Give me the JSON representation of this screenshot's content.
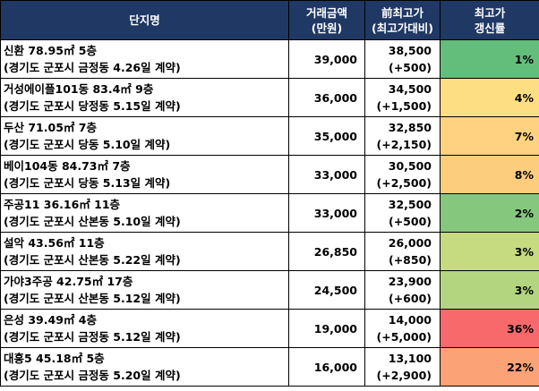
{
  "header": {
    "name": "단지명",
    "amount": [
      "거래금액",
      "(만원)"
    ],
    "prev": [
      "前최고가",
      "(최고가대비)"
    ],
    "rate": [
      "최고가",
      "갱신률"
    ]
  },
  "rows": [
    {
      "name": "신환 78.95㎡ 5층",
      "detail": "(경기도 군포시 금정동 4.26일 계약)",
      "amount": "39,000",
      "prev_high": "38,500",
      "diff": "(+500)",
      "rate": "1%",
      "color": "#63be7b"
    },
    {
      "name": "거성에이플101동 83.4㎡ 9층",
      "detail": "(경기도 군포시 당정동 5.15일 계약)",
      "amount": "36,000",
      "prev_high": "34,500",
      "diff": "(+1,500)",
      "rate": "4%",
      "color": "#fede83"
    },
    {
      "name": "두산 71.05㎡ 7층",
      "detail": "(경기도 군포시 당동 5.10일 계약)",
      "amount": "35,000",
      "prev_high": "32,850",
      "diff": "(+2,150)",
      "rate": "7%",
      "color": "#fed280"
    },
    {
      "name": "베이104동 84.73㎡ 7층",
      "detail": "(경기도 군포시 당동 5.13일 계약)",
      "amount": "33,000",
      "prev_high": "30,500",
      "diff": "(+2,500)",
      "rate": "8%",
      "color": "#fdcd7e"
    },
    {
      "name": "주공11 36.16㎡ 11층",
      "detail": "(경기도 군포시 산본동 5.10일 계약)",
      "amount": "33,000",
      "prev_high": "32,500",
      "diff": "(+500)",
      "rate": "2%",
      "color": "#85c87d"
    },
    {
      "name": "설악 43.56㎡ 11층",
      "detail": "(경기도 군포시 산본동 5.22일 계약)",
      "amount": "26,850",
      "prev_high": "26,000",
      "diff": "(+850)",
      "rate": "3%",
      "color": "#c6da80"
    },
    {
      "name": "가야3주공 42.75㎡ 17층",
      "detail": "(경기도 군포시 산본동 5.12일 계약)",
      "amount": "24,500",
      "prev_high": "23,900",
      "diff": "(+600)",
      "rate": "3%",
      "color": "#b3d57f"
    },
    {
      "name": "은성 39.49㎡ 4층",
      "detail": "(경기도 군포시 금정동 5.12일 계약)",
      "amount": "19,000",
      "prev_high": "14,000",
      "diff": "(+5,000)",
      "rate": "36%",
      "color": "#f8696b"
    },
    {
      "name": "대흥5 45.18㎡ 5층",
      "detail": "(경기도 군포시 금정동 5.20일 계약)",
      "amount": "16,000",
      "prev_high": "13,100",
      "diff": "(+2,900)",
      "rate": "22%",
      "color": "#fba276"
    }
  ]
}
